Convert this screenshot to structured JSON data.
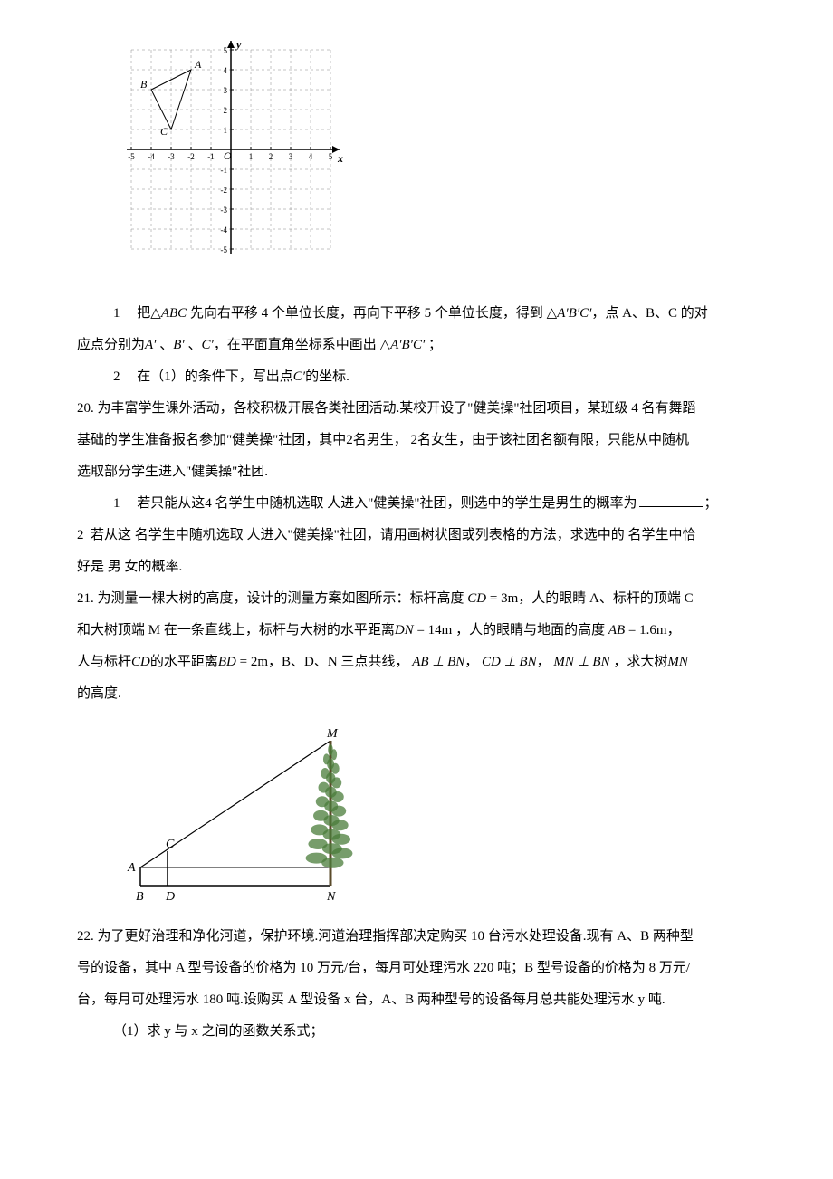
{
  "grid_chart": {
    "type": "coordinate-grid",
    "x_range": [
      -5,
      5
    ],
    "y_range": [
      -5,
      5
    ],
    "x_label": "x",
    "y_label": "y",
    "origin_label": "O",
    "x_ticks": [
      "-5",
      "-4",
      "-3",
      "-2",
      "-1",
      "1",
      "2",
      "3",
      "4",
      "5"
    ],
    "y_ticks_pos": [
      "1",
      "2",
      "3",
      "4",
      "5"
    ],
    "y_ticks_neg": [
      "-1",
      "-2",
      "-3",
      "-4",
      "-5"
    ],
    "grid_color": "#888888",
    "axis_color": "#000000",
    "tick_fontsize": 9,
    "label_fontsize": 12,
    "points": {
      "A": {
        "x": -2,
        "y": 4,
        "label": "A"
      },
      "B": {
        "x": -4,
        "y": 3,
        "label": "B"
      },
      "C": {
        "x": -3,
        "y": 1,
        "label": "C"
      }
    },
    "triangle_color": "#000000",
    "triangle_linewidth": 1
  },
  "q19_sub1": {
    "num": "1",
    "text_a": "把",
    "text_b": "先向右平移 4 个单位长度，再向下平移 5 个单位长度，得到",
    "text_c": "，点 A、B、C 的对",
    "text_d": "应点分别为",
    "text_e": "、",
    "text_f": "，在平面直角坐标系中画出",
    "text_g": "；",
    "abc": "ABC",
    "abc2": "A′B′C′",
    "ap": "A′",
    "bp": "B′",
    "cp": "C′"
  },
  "q19_sub2": {
    "num": "2",
    "text_a": "在（1）的条件下，写出点",
    "cp": "C′",
    "text_b": "的坐标."
  },
  "q20": {
    "num": "20.",
    "line1": "为丰富学生课外活动，各校积极开展各类社团活动.某校开设了\"健美操\"社团项目，某班级 4 名有舞蹈",
    "line2a": "基础的学生准备报名参加\"健美操\"社团，其中",
    "two": "2",
    "line2b": "名男生，",
    "line2c": "名女生，由于该社团名额有限，只能从中随机",
    "line3": "选取部分学生进入\"健美操\"社团.",
    "s1_num": "1",
    "s1_a": "若只能从这",
    "s1_four": "4",
    "s1_b": " 名学生中随机选取  人进入\"健美操\"社团，则选中的学生是男生的概率为",
    "s1_c": "；",
    "s2_num": "2",
    "s2_a": "若从这  名学生中随机选取  人进入\"健美操\"社团，请用画树状图或列表格的方法，求选中的  名学生中恰",
    "s3": "好是  男  女的概率."
  },
  "q21": {
    "num": "21.",
    "line1a": "为测量一棵大树的高度，设计的测量方案如图所示：标杆高度 ",
    "cd": "CD",
    "eq1": " = 3m",
    "line1b": "，人的眼睛 A、标杆的顶端 C",
    "line2a": "和大树顶端 M 在一条直线上，标杆与大树的水平距离",
    "dn": "DN",
    "eq2": " = 14m",
    "line2b": "，人的眼睛与地面的高度 ",
    "ab": "AB",
    "eq3": " = 1.6m",
    "line2c": "，",
    "line3a": "人与标杆",
    "cd2": "CD",
    "line3b": "的水平距离",
    "bd": "BD",
    "eq4": " = 2m",
    "line3c": "，B、D、N 三点共线，",
    "perp1": "AB ⊥ BN",
    "comma": "，",
    "perp2": "CD ⊥ BN",
    "perp3": "MN ⊥ BN",
    "line3d": "，求大树",
    "mn": "MN",
    "line4": "的高度."
  },
  "tree_diagram": {
    "labels": {
      "A": "A",
      "B": "B",
      "C": "C",
      "D": "D",
      "M": "M",
      "N": "N"
    },
    "line_color": "#000000",
    "tree_color": "#4a7c3a",
    "trunk_color": "#5a4a2a",
    "label_fontsize": 14
  },
  "q22": {
    "num": "22.",
    "line1": "为了更好治理和净化河道，保护环境.河道治理指挥部决定购买 10 台污水处理设备.现有 A、B 两种型",
    "line2": "号的设备，其中 A 型号设备的价格为 10 万元/台，每月可处理污水 220 吨；B 型号设备的价格为 8 万元/",
    "line3": "台，每月可处理污水 180 吨.设购买 A 型设备 x 台，A、B 两种型号的设备每月总共能处理污水 y 吨.",
    "s1": "（1）求 y 与 x 之间的函数关系式；"
  }
}
